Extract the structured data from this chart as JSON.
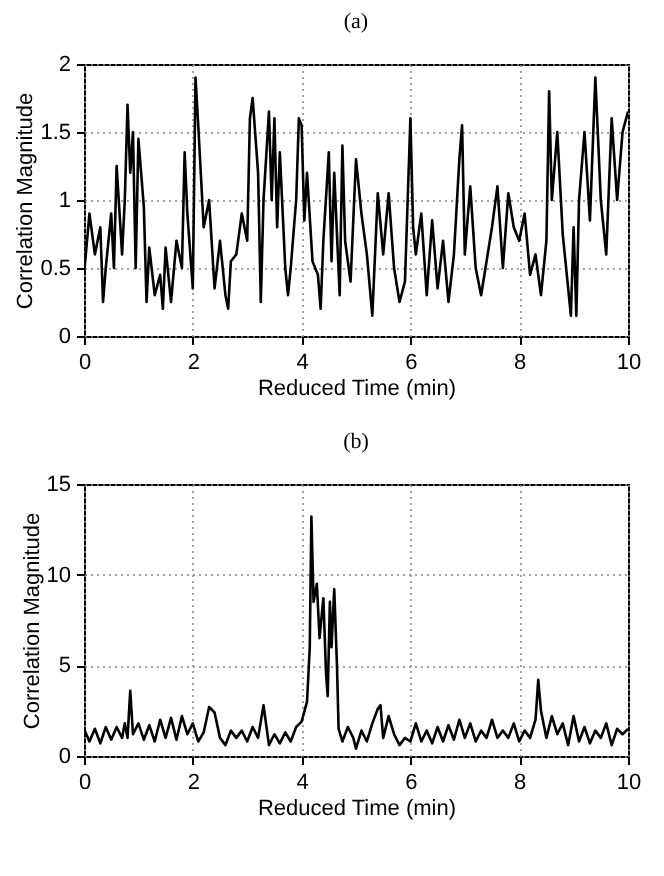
{
  "chart_data": [
    {
      "type": "line",
      "title": "(a)",
      "xlabel": "Reduced Time (min)",
      "ylabel": "Correlation Magnitude",
      "xlim": [
        0,
        10
      ],
      "xticks": [
        0,
        2,
        4,
        6,
        8,
        10
      ],
      "ylim": [
        0,
        2
      ],
      "yticks": [
        0,
        0.5,
        1,
        1.5,
        2
      ],
      "grid": true,
      "line_style": "solid",
      "x": [
        0,
        0.1,
        0.2,
        0.3,
        0.35,
        0.4,
        0.5,
        0.55,
        0.6,
        0.7,
        0.75,
        0.8,
        0.85,
        0.9,
        0.95,
        1.0,
        1.1,
        1.15,
        1.2,
        1.3,
        1.4,
        1.45,
        1.5,
        1.6,
        1.7,
        1.8,
        1.85,
        1.9,
        2.0,
        2.05,
        2.1,
        2.2,
        2.3,
        2.4,
        2.5,
        2.6,
        2.65,
        2.7,
        2.8,
        2.9,
        3.0,
        3.05,
        3.1,
        3.2,
        3.25,
        3.3,
        3.4,
        3.45,
        3.5,
        3.55,
        3.6,
        3.7,
        3.75,
        3.8,
        3.9,
        3.95,
        4.0,
        4.05,
        4.1,
        4.2,
        4.3,
        4.35,
        4.4,
        4.5,
        4.55,
        4.6,
        4.7,
        4.75,
        4.8,
        4.9,
        5.0,
        5.1,
        5.2,
        5.3,
        5.4,
        5.5,
        5.6,
        5.7,
        5.8,
        5.9,
        6.0,
        6.05,
        6.1,
        6.2,
        6.3,
        6.4,
        6.5,
        6.6,
        6.7,
        6.8,
        6.9,
        6.95,
        7.0,
        7.1,
        7.2,
        7.3,
        7.4,
        7.5,
        7.6,
        7.7,
        7.8,
        7.9,
        8.0,
        8.1,
        8.2,
        8.3,
        8.4,
        8.5,
        8.55,
        8.6,
        8.7,
        8.8,
        8.9,
        8.95,
        9.0,
        9.05,
        9.1,
        9.2,
        9.3,
        9.4,
        9.5,
        9.6,
        9.7,
        9.8,
        9.9,
        10.0
      ],
      "series": [
        {
          "color": "#000000",
          "values": [
            0.45,
            0.9,
            0.6,
            0.8,
            0.25,
            0.5,
            0.9,
            0.5,
            1.25,
            0.6,
            1.0,
            1.7,
            1.2,
            1.5,
            0.5,
            1.45,
            0.95,
            0.25,
            0.65,
            0.3,
            0.45,
            0.2,
            0.65,
            0.25,
            0.7,
            0.5,
            1.35,
            0.9,
            0.35,
            1.9,
            1.55,
            0.8,
            1.0,
            0.35,
            0.7,
            0.3,
            0.2,
            0.55,
            0.6,
            0.9,
            0.7,
            1.6,
            1.75,
            1.2,
            0.25,
            1.0,
            1.65,
            1.0,
            1.6,
            0.8,
            1.35,
            0.5,
            0.3,
            0.5,
            1.0,
            1.6,
            1.55,
            0.85,
            1.2,
            0.55,
            0.45,
            0.2,
            0.7,
            1.35,
            0.55,
            1.2,
            0.3,
            1.4,
            0.7,
            0.4,
            1.3,
            0.9,
            0.6,
            0.15,
            1.05,
            0.6,
            1.05,
            0.5,
            0.25,
            0.4,
            1.6,
            0.8,
            0.6,
            0.9,
            0.3,
            0.85,
            0.35,
            0.7,
            0.25,
            0.6,
            1.3,
            1.55,
            0.6,
            1.1,
            0.5,
            0.3,
            0.55,
            0.8,
            1.1,
            0.5,
            1.05,
            0.8,
            0.7,
            0.9,
            0.45,
            0.6,
            0.3,
            0.7,
            1.8,
            1.0,
            1.5,
            0.75,
            0.35,
            0.15,
            0.8,
            0.15,
            1.0,
            1.5,
            0.85,
            1.9,
            1.0,
            0.6,
            1.6,
            1.0,
            1.5,
            1.65
          ]
        }
      ]
    },
    {
      "type": "line",
      "title": "(b)",
      "xlabel": "Reduced Time (min)",
      "ylabel": "Correlation Magnitude",
      "xlim": [
        0,
        10
      ],
      "xticks": [
        0,
        2,
        4,
        6,
        8,
        10
      ],
      "ylim": [
        0,
        15
      ],
      "yticks": [
        0,
        5,
        10,
        15
      ],
      "grid": true,
      "line_style": "solid",
      "x": [
        0,
        0.1,
        0.2,
        0.3,
        0.4,
        0.5,
        0.6,
        0.7,
        0.75,
        0.8,
        0.85,
        0.9,
        1.0,
        1.1,
        1.2,
        1.3,
        1.4,
        1.5,
        1.6,
        1.7,
        1.8,
        1.9,
        2.0,
        2.1,
        2.2,
        2.3,
        2.4,
        2.5,
        2.6,
        2.7,
        2.8,
        2.9,
        3.0,
        3.1,
        3.2,
        3.3,
        3.4,
        3.5,
        3.6,
        3.7,
        3.8,
        3.9,
        4.0,
        4.1,
        4.15,
        4.18,
        4.22,
        4.28,
        4.33,
        4.4,
        4.45,
        4.48,
        4.52,
        4.55,
        4.6,
        4.65,
        4.68,
        4.75,
        4.85,
        4.95,
        5.0,
        5.1,
        5.2,
        5.3,
        5.4,
        5.45,
        5.5,
        5.6,
        5.7,
        5.8,
        5.9,
        6.0,
        6.1,
        6.2,
        6.3,
        6.4,
        6.5,
        6.6,
        6.7,
        6.8,
        6.9,
        7.0,
        7.1,
        7.2,
        7.3,
        7.4,
        7.5,
        7.6,
        7.7,
        7.8,
        7.9,
        8.0,
        8.1,
        8.2,
        8.3,
        8.35,
        8.4,
        8.5,
        8.6,
        8.7,
        8.8,
        8.9,
        9.0,
        9.1,
        9.2,
        9.3,
        9.4,
        9.5,
        9.6,
        9.7,
        9.8,
        9.9,
        10.0
      ],
      "series": [
        {
          "color": "#000000",
          "values": [
            1.5,
            0.8,
            1.5,
            0.7,
            1.6,
            0.9,
            1.6,
            1.0,
            1.8,
            1.0,
            3.6,
            1.2,
            1.8,
            0.9,
            1.7,
            0.8,
            2.0,
            1.0,
            2.1,
            0.9,
            2.2,
            1.2,
            1.8,
            0.8,
            1.3,
            2.7,
            2.4,
            1.0,
            0.6,
            1.4,
            1.0,
            1.4,
            0.8,
            1.6,
            1.0,
            2.8,
            0.6,
            1.2,
            0.7,
            1.3,
            0.8,
            1.6,
            1.9,
            3.0,
            6.0,
            13.2,
            8.5,
            9.5,
            6.5,
            8.7,
            4.5,
            3.3,
            8.5,
            6.0,
            9.2,
            5.0,
            1.5,
            0.8,
            1.6,
            1.0,
            0.4,
            1.4,
            0.8,
            1.8,
            2.6,
            2.8,
            1.0,
            2.2,
            1.2,
            0.6,
            1.0,
            0.8,
            1.8,
            0.8,
            1.4,
            0.7,
            1.6,
            0.8,
            1.7,
            0.9,
            2.0,
            1.0,
            1.8,
            0.8,
            1.4,
            1.0,
            2.0,
            1.0,
            1.4,
            1.0,
            1.8,
            0.8,
            1.4,
            1.0,
            2.0,
            4.2,
            2.5,
            1.0,
            2.2,
            1.2,
            1.8,
            0.6,
            2.2,
            0.8,
            1.6,
            0.7,
            1.4,
            1.0,
            1.8,
            0.6,
            1.5,
            1.2,
            1.5
          ]
        }
      ]
    }
  ]
}
